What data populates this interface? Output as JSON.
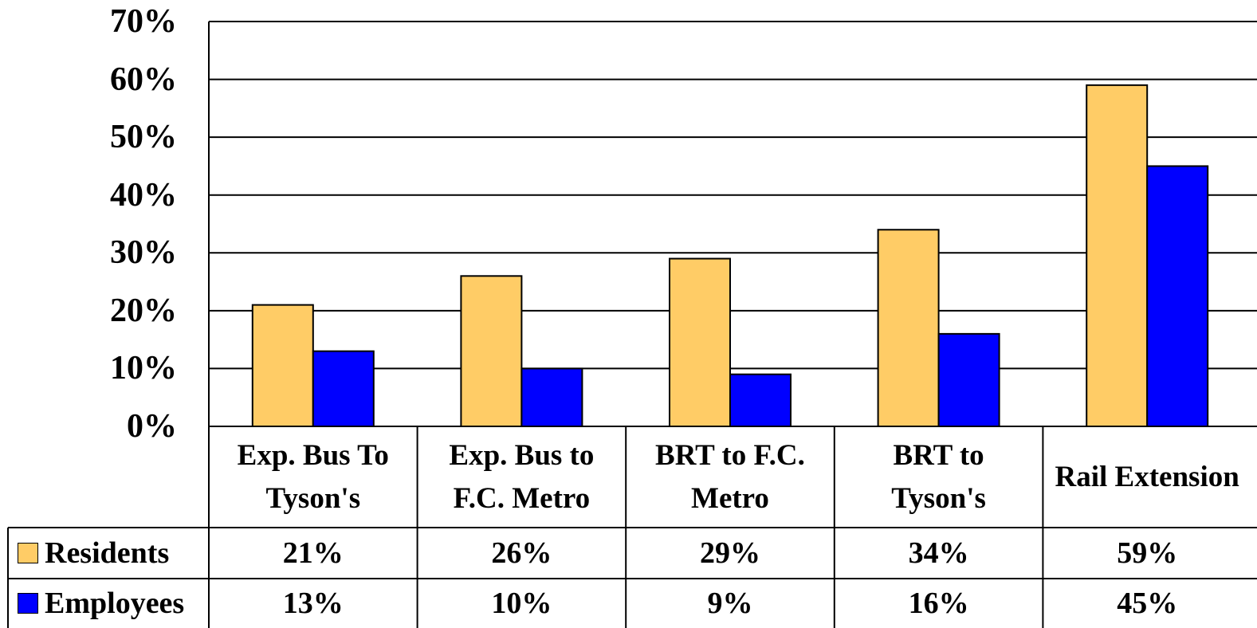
{
  "chart_data": {
    "type": "bar",
    "categories": [
      "Exp. Bus To Tyson's",
      "Exp. Bus to F.C. Metro",
      "BRT to F.C. Metro",
      "BRT to Tyson's",
      "Rail Extension"
    ],
    "series": [
      {
        "name": "Residents",
        "color": "#ffcc66",
        "values": [
          21,
          26,
          29,
          34,
          59
        ],
        "value_labels": [
          "21%",
          "26%",
          "29%",
          "34%",
          "59%"
        ]
      },
      {
        "name": "Employees",
        "color": "#0000ff",
        "values": [
          13,
          10,
          9,
          16,
          45
        ],
        "value_labels": [
          "13%",
          "10%",
          "9%",
          "16%",
          "45%"
        ]
      }
    ],
    "ylim": [
      0,
      70
    ],
    "yticks": [
      {
        "value": 0,
        "label": "0%"
      },
      {
        "value": 10,
        "label": "10%"
      },
      {
        "value": 20,
        "label": "20%"
      },
      {
        "value": 30,
        "label": "30%"
      },
      {
        "value": 40,
        "label": "40%"
      },
      {
        "value": 50,
        "label": "50%"
      },
      {
        "value": 60,
        "label": "60%"
      },
      {
        "value": 70,
        "label": "70%"
      }
    ],
    "grid": true
  }
}
